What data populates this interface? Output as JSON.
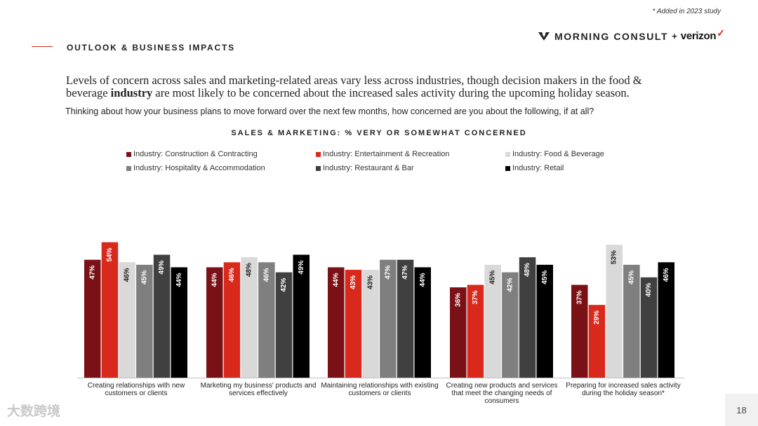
{
  "header": {
    "added_note": "* Added in 2023 study",
    "section_title": "OUTLOOK & BUSINESS IMPACTS",
    "brand_primary": "MORNING CONSULT",
    "brand_plus": "+",
    "brand_partner": "verizon",
    "brand_check": "✓"
  },
  "headline": {
    "part1": "Levels of concern across sales and marketing-related areas vary less across industries, though decision makers in the food & beverage ",
    "emphasis": "industry",
    "part2": " are most likely to be concerned about the increased sales activity during the upcoming holiday season."
  },
  "question": "Thinking about how your business plans to move forward over the next few months, how concerned are you about the following, if at all?",
  "chart_data": {
    "type": "bar",
    "title": "SALES & MARKETING: % VERY OR SOMEWHAT CONCERNED",
    "categories": [
      "Creating relationships with new customers or clients",
      "Marketing my business' products and services effectively",
      "Maintaining relationships with existing customers or clients",
      "Creating new products and services that meet the changing needs of consumers",
      "Preparing for increased sales activity during the holiday season*"
    ],
    "series": [
      {
        "name": "Industry: Construction & Contracting",
        "color": "#7a1116",
        "values": [
          47,
          44,
          44,
          36,
          37
        ]
      },
      {
        "name": "Industry: Entertainment & Recreation",
        "color": "#d9291c",
        "values": [
          54,
          46,
          43,
          37,
          29
        ]
      },
      {
        "name": "Industry: Food & Beverage",
        "color": "#d9d9d9",
        "values": [
          46,
          48,
          43,
          45,
          53
        ]
      },
      {
        "name": "Industry: Hospitality & Accommodation",
        "color": "#7f7f7f",
        "values": [
          45,
          46,
          47,
          42,
          45
        ]
      },
      {
        "name": "Industry: Restaurant & Bar",
        "color": "#404040",
        "values": [
          49,
          42,
          47,
          48,
          40
        ]
      },
      {
        "name": "Industry: Retail",
        "color": "#000000",
        "values": [
          44,
          49,
          44,
          45,
          46
        ]
      }
    ],
    "value_suffix": "%",
    "ylim": [
      0,
      100
    ],
    "grid": false,
    "legend_position": "top"
  },
  "footer": {
    "page_number": "18",
    "watermark": "大数跨境"
  }
}
